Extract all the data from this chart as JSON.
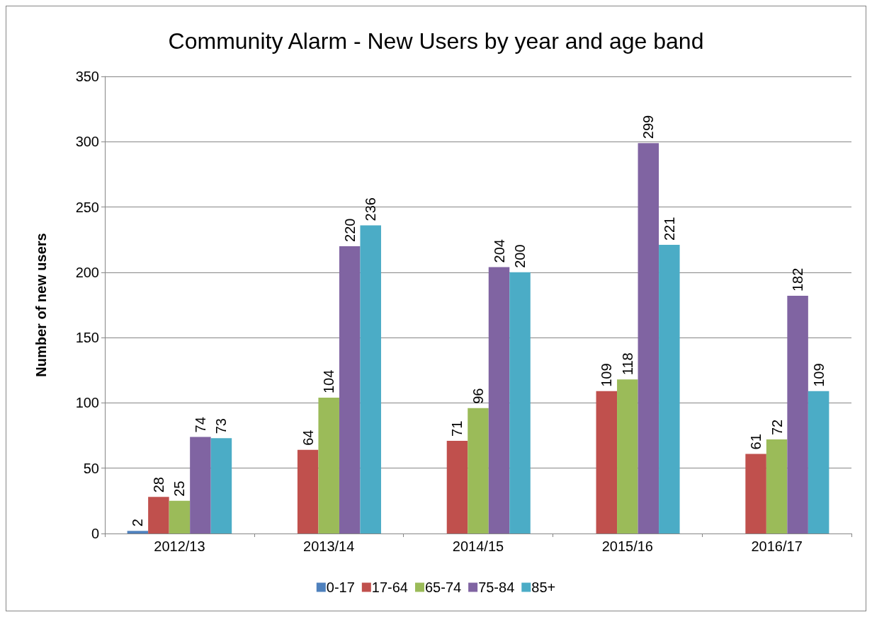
{
  "chart_data": {
    "type": "bar",
    "title": "Community Alarm - New Users by year and age band",
    "ylabel": "Number of new users",
    "categories": [
      "2012/13",
      "2013/14",
      "2014/15",
      "2015/16",
      "2016/17"
    ],
    "series": [
      {
        "name": "0-17",
        "color": "#4f81bd",
        "values": [
          2,
          null,
          null,
          null,
          null
        ]
      },
      {
        "name": "17-64",
        "color": "#c0504d",
        "values": [
          28,
          64,
          71,
          109,
          61
        ]
      },
      {
        "name": "65-74",
        "color": "#9bbb59",
        "values": [
          25,
          104,
          96,
          118,
          72
        ]
      },
      {
        "name": "75-84",
        "color": "#8064a2",
        "values": [
          74,
          220,
          204,
          299,
          182
        ]
      },
      {
        "name": "85+",
        "color": "#4bacc6",
        "values": [
          73,
          236,
          200,
          221,
          109
        ]
      }
    ],
    "ylim": [
      0,
      350
    ],
    "yticks": [
      0,
      50,
      100,
      150,
      200,
      250,
      300,
      350
    ],
    "grid": "y",
    "legend": "bottom",
    "data_labels": true
  }
}
